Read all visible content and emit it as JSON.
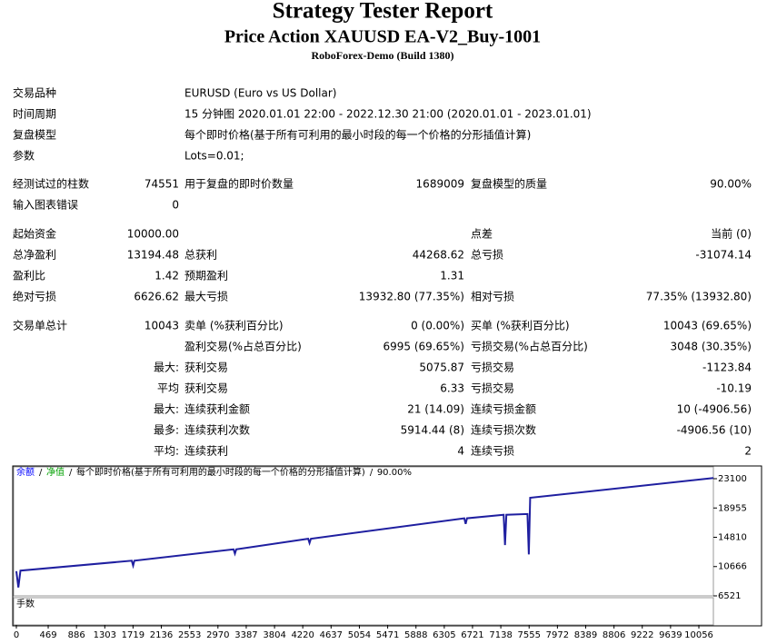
{
  "header": {
    "title": "Strategy Tester Report",
    "subtitle": "Price Action XAUUSD EA-V2_Buy-1001",
    "server": "RoboForex-Demo (Build 1380)"
  },
  "info": [
    {
      "label": "交易品种",
      "value": "EURUSD (Euro vs US Dollar)"
    },
    {
      "label": "时间周期",
      "value": "15 分钟图 2020.01.01 22:00 - 2022.12.30 21:00 (2020.01.01 - 2023.01.01)"
    },
    {
      "label": "复盘模型",
      "value": "每个即时价格(基于所有可利用的最小时段的每一个价格的分形插值计算)"
    },
    {
      "label": "参数",
      "value": "Lots=0.01;"
    }
  ],
  "stats": [
    [
      {
        "a": "经测试过的柱数",
        "b": "74551",
        "c": "用于复盘的即时价数量",
        "d": "1689009",
        "e": "复盘模型的质量",
        "f": "90.00%"
      },
      {
        "a": "输入图表错误",
        "b": "0"
      }
    ],
    [
      {
        "a": "起始资金",
        "b": "10000.00",
        "e": "点差",
        "f": "当前 (0)"
      },
      {
        "a": "总净盈利",
        "b": "13194.48",
        "c": "总获利",
        "d": "44268.62",
        "e": "总亏损",
        "f": "-31074.14"
      },
      {
        "a": "盈利比",
        "b": "1.42",
        "c": "预期盈利",
        "d": "1.31"
      },
      {
        "a": "绝对亏损",
        "b": "6626.62",
        "c": "最大亏损",
        "d": "13932.80 (77.35%)",
        "e": "相对亏损",
        "f": "77.35% (13932.80)"
      }
    ],
    [
      {
        "a": "交易单总计",
        "b": "10043",
        "c": "卖单 (%获利百分比)",
        "d": "0 (0.00%)",
        "e": "买单 (%获利百分比)",
        "f": "10043 (69.65%)"
      },
      {
        "c": "盈利交易(%占总百分比)",
        "d": "6995 (69.65%)",
        "e": "亏损交易(%占总百分比)",
        "f": "3048 (30.35%)"
      },
      {
        "b": "最大:",
        "c": "获利交易",
        "d": "5075.87",
        "e": "亏损交易",
        "f": "-1123.84"
      },
      {
        "b": "平均",
        "c": "获利交易",
        "d": "6.33",
        "e": "亏损交易",
        "f": "-10.19"
      },
      {
        "b": "最大:",
        "c": "连续获利金额",
        "d": "21 (14.09)",
        "e": "连续亏损金额",
        "f": "10 (-4906.56)"
      },
      {
        "b": "最多:",
        "c": "连续获利次数",
        "d": "5914.44 (8)",
        "e": "连续亏损次数",
        "f": "-4906.56 (10)"
      },
      {
        "b": "平均:",
        "c": "连续获利",
        "d": "4",
        "e": "连续亏损",
        "f": "2"
      }
    ]
  ],
  "graph": {
    "legend": [
      {
        "text": "余额",
        "color": "#0000ff"
      },
      {
        "text": "净值",
        "color": "#00a000"
      },
      {
        "text": "每个即时价格(基于所有可利用的最小时段的每一个价格的分形插值计算)",
        "color": "#000000"
      },
      {
        "text": "90.00%",
        "color": "#000000"
      }
    ],
    "lower_label": "手数",
    "color": "#1f1fa0",
    "xlim": [
      0,
      10270
    ],
    "ylim": [
      6521,
      24900
    ],
    "yticks": [
      6521,
      10666,
      14810,
      18955,
      23100
    ],
    "xticks": [
      0,
      469,
      886,
      1303,
      1719,
      2136,
      2553,
      2970,
      3387,
      3804,
      4220,
      4637,
      5054,
      5471,
      5888,
      6305,
      6721,
      7138,
      7555,
      7972,
      8389,
      8806,
      9222,
      9639,
      10056
    ],
    "balance": {
      "x": [
        0,
        30,
        60,
        1700,
        1720,
        1740,
        3200,
        3220,
        3240,
        4300,
        4320,
        4340,
        6600,
        6620,
        6640,
        7180,
        7200,
        7220,
        7530,
        7550,
        7570,
        10270
      ],
      "y": [
        10000,
        7700,
        10100,
        11500,
        10800,
        11500,
        13100,
        12500,
        13100,
        14600,
        14000,
        14600,
        17500,
        16700,
        17500,
        18000,
        13700,
        18000,
        18100,
        12400,
        20400,
        23194
      ]
    }
  }
}
